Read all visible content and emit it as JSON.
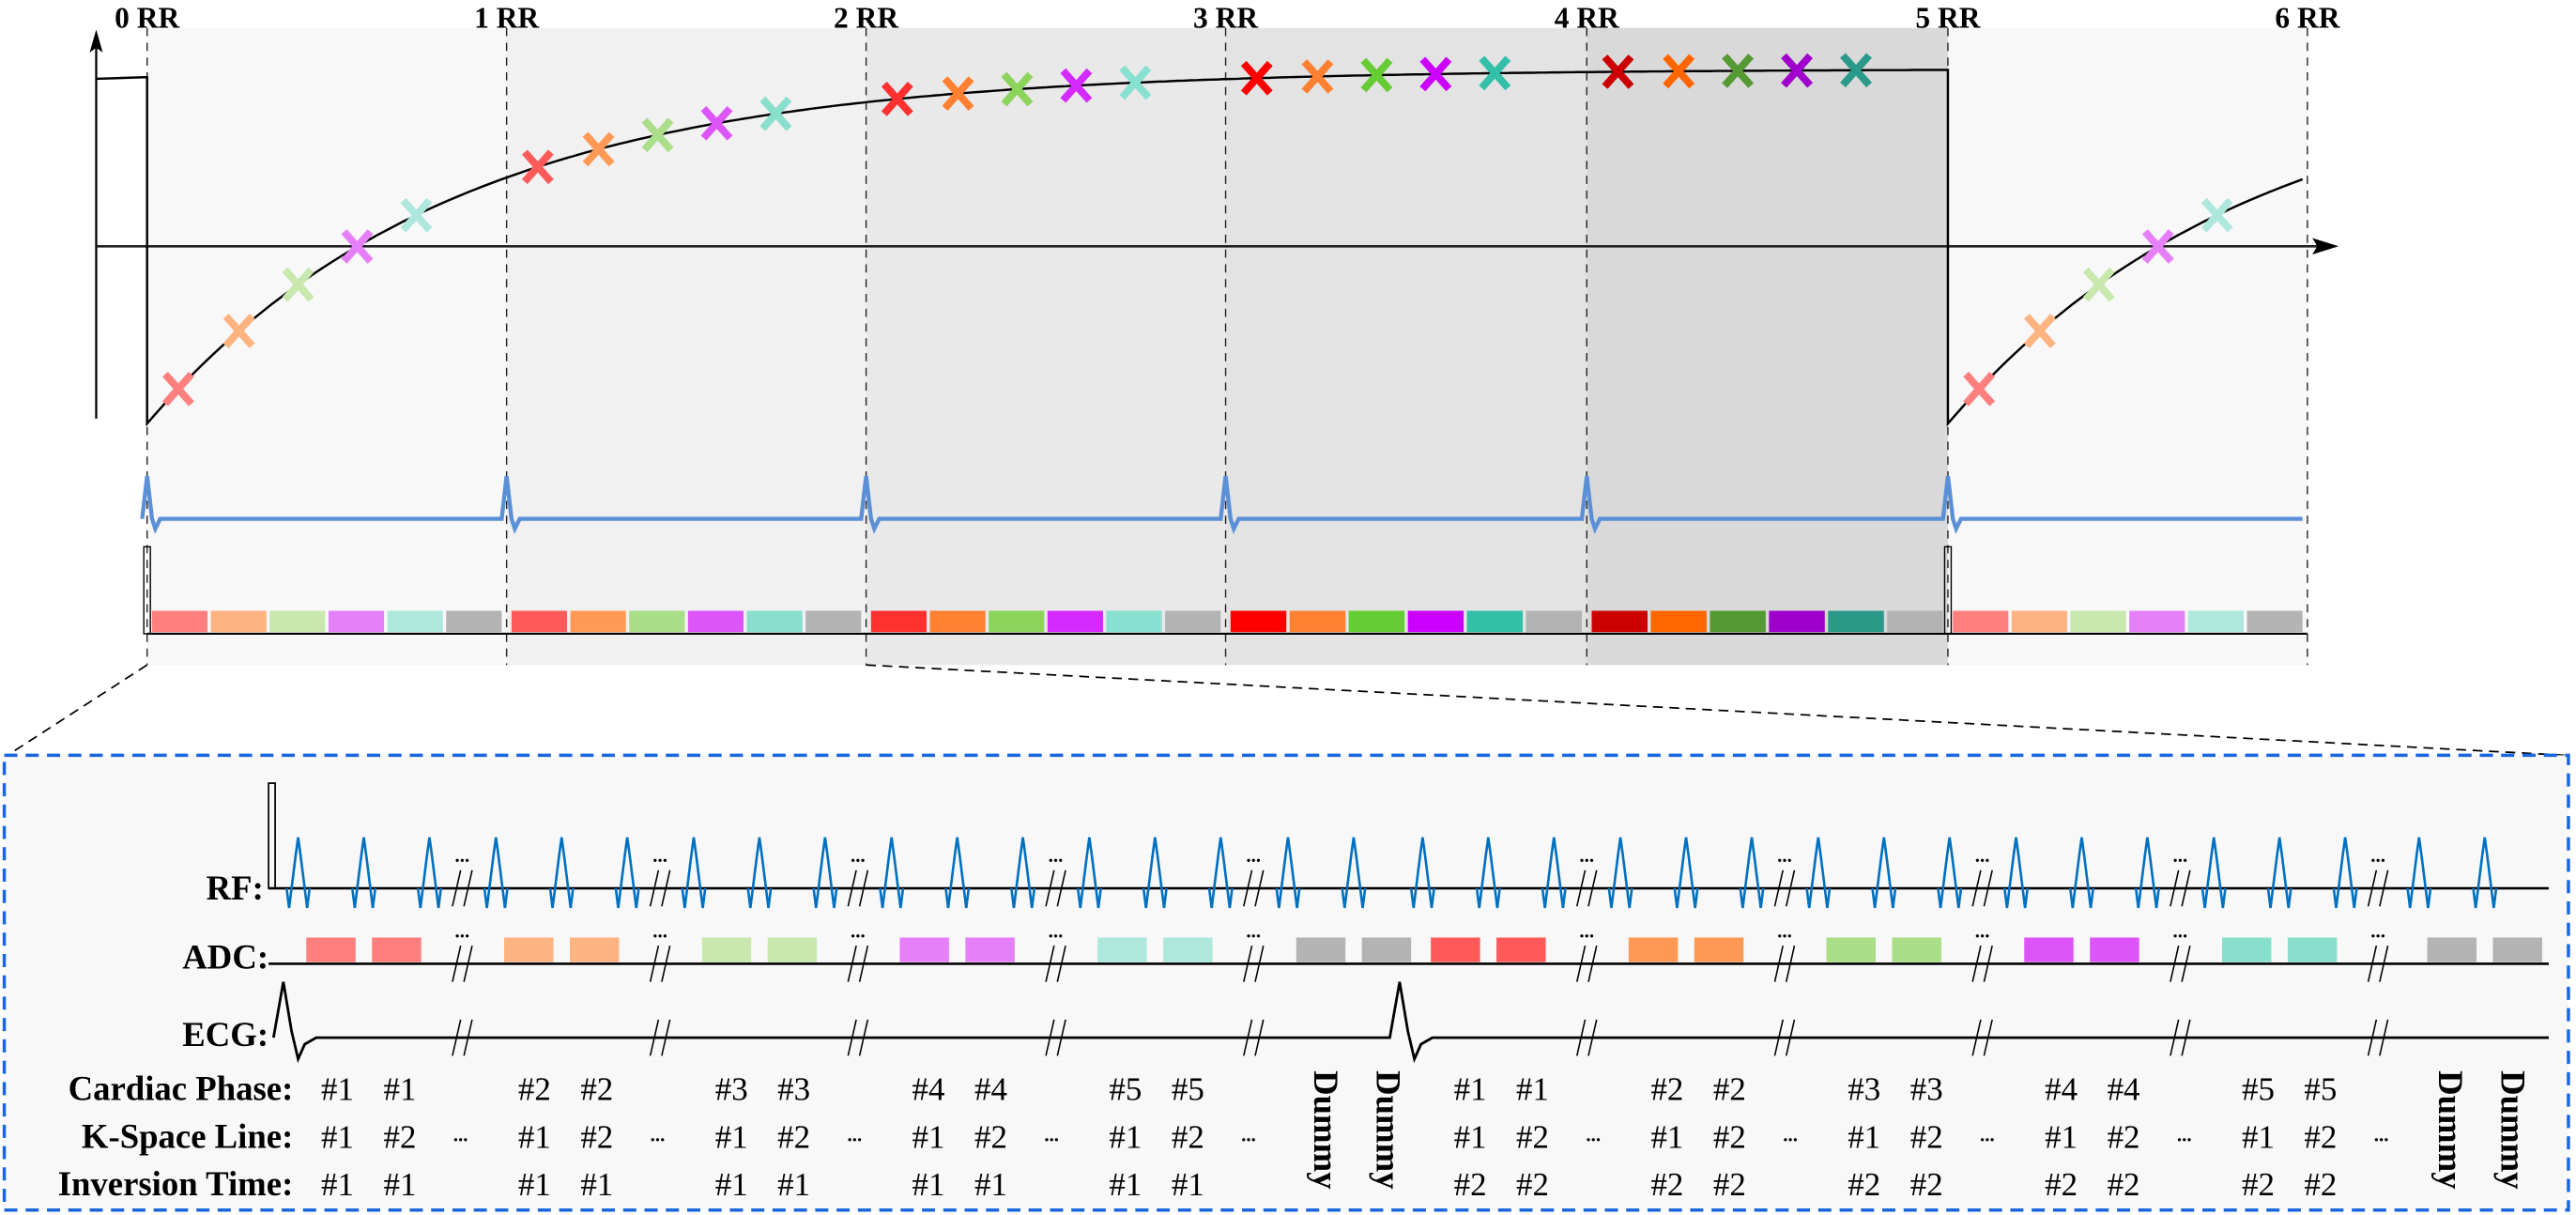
{
  "rr_labels": [
    "0 RR",
    "1 RR",
    "2 RR",
    "3 RR",
    "4 RR",
    "5 RR",
    "6 RR"
  ],
  "signals": {
    "rf": "RF:",
    "adc": "ADC:",
    "ecg": "ECG:"
  },
  "ellipsis": "...",
  "dummy_label": "Dummy",
  "table": {
    "rows": [
      {
        "label": "Cardiac Phase:",
        "values": [
          "#1",
          "#1",
          "#2",
          "#2",
          "#3",
          "#3",
          "#4",
          "#4",
          "#5",
          "#5",
          "#1",
          "#1",
          "#2",
          "#2",
          "#3",
          "#3",
          "#4",
          "#4",
          "#5",
          "#5"
        ]
      },
      {
        "label": "K-Space Line:",
        "values": [
          "#1",
          "#2",
          "#1",
          "#2",
          "#1",
          "#2",
          "#1",
          "#2",
          "#1",
          "#2",
          "#1",
          "#2",
          "#1",
          "#2",
          "#1",
          "#2",
          "#1",
          "#2",
          "#1",
          "#2"
        ]
      },
      {
        "label": "Inversion Time:",
        "values": [
          "#1",
          "#1",
          "#1",
          "#1",
          "#1",
          "#1",
          "#1",
          "#1",
          "#1",
          "#1",
          "#2",
          "#2",
          "#2",
          "#2",
          "#2",
          "#2",
          "#2",
          "#2",
          "#2",
          "#2"
        ]
      }
    ]
  },
  "colors": {
    "segment_backgrounds": [
      "#f8f8f8",
      "#f1f1f1",
      "#e9e9e9",
      "#e3e3e3",
      "#d9d9d9",
      "#f8f8f8"
    ],
    "segment_palettes": [
      [
        "#ff7f7f",
        "#ffb380",
        "#c8e8ae",
        "#e680f8",
        "#aee8dd"
      ],
      [
        "#ff5a5a",
        "#ff9955",
        "#aade88",
        "#dd55f8",
        "#88dfcc"
      ],
      [
        "#ff3030",
        "#ff8030",
        "#8cd45c",
        "#d42aff",
        "#88e0d0"
      ],
      [
        "#ff0000",
        "#ff8030",
        "#66cc33",
        "#cc00ff",
        "#33c0a8"
      ],
      [
        "#cc0000",
        "#ff6600",
        "#559933",
        "#a000cc",
        "#2a9988"
      ],
      [
        "#ff7f7f",
        "#ffb380",
        "#c8e8ae",
        "#e680f8",
        "#aee8dd"
      ]
    ],
    "dummy_gray": "#b3b3b3",
    "ecg_blue": "#5b8fd6",
    "rf_blue": "#0070c0",
    "zoom_box_border": "#1a66dd"
  }
}
